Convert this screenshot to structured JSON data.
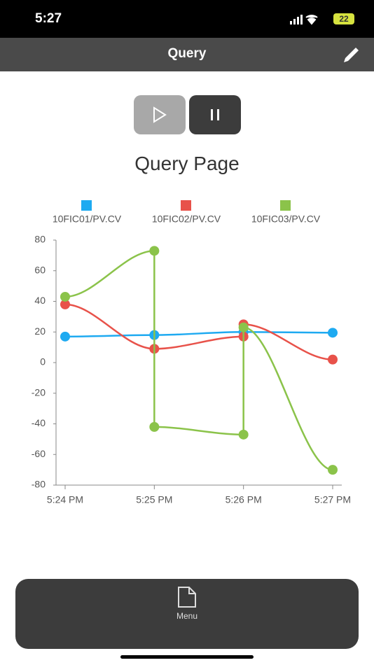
{
  "status_bar": {
    "time": "5:27",
    "battery": "22"
  },
  "header": {
    "title": "Query"
  },
  "page_title": "Query Page",
  "bottom_nav": {
    "label": "Menu"
  },
  "chart_data": {
    "type": "line",
    "categories": [
      "5:24 PM",
      "5:25 PM",
      "5:26 PM",
      "5:27 PM"
    ],
    "series": [
      {
        "name": "10FIC01/PV.CV",
        "color": "#1eaaf1",
        "x": [
          "5:24 PM",
          "5:25 PM",
          "5:26 PM",
          "5:27 PM"
        ],
        "values": [
          17,
          18,
          20,
          19.5
        ]
      },
      {
        "name": "10FIC02/PV.CV",
        "color": "#e8524a",
        "x": [
          "5:24 PM",
          "5:25 PM",
          "5:26 PM",
          "5:26 PM",
          "5:27 PM"
        ],
        "values": [
          38,
          9,
          17,
          25,
          2
        ]
      },
      {
        "name": "10FIC03/PV.CV",
        "color": "#8bc34a",
        "x": [
          "5:24 PM",
          "5:25 PM",
          "5:25 PM",
          "5:26 PM",
          "5:26 PM",
          "5:27 PM"
        ],
        "values": [
          43,
          73,
          -42,
          -47,
          23,
          -70
        ]
      }
    ],
    "ylim": [
      -80,
      80
    ],
    "yticks": [
      -80,
      -60,
      -40,
      -20,
      0,
      20,
      40,
      60,
      80
    ],
    "legend": "top"
  }
}
